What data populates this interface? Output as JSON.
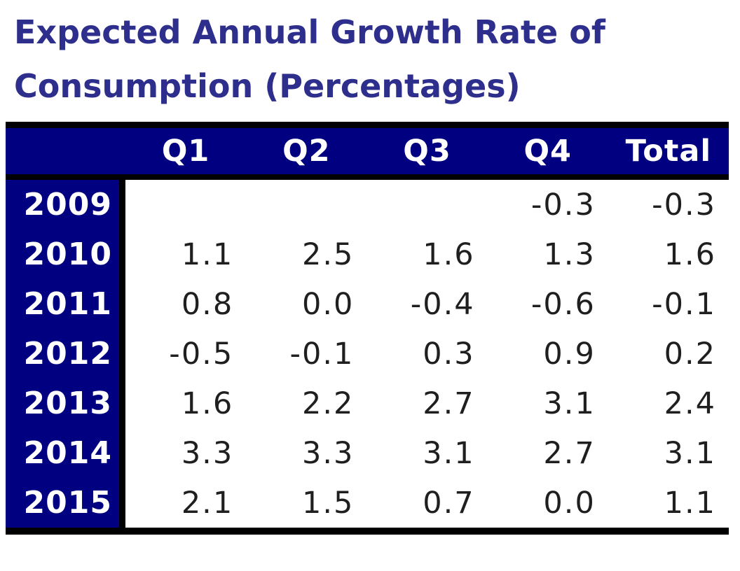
{
  "title": {
    "line1": "Expected Annual Growth Rate of",
    "line2": "Consumption (Percentages)"
  },
  "table": {
    "corner_label": "",
    "columns": [
      "Q1",
      "Q2",
      "Q3",
      "Q4",
      "Total"
    ],
    "rows": [
      {
        "year": "2009",
        "values": [
          "",
          "",
          "",
          "-0.3",
          "-0.3"
        ]
      },
      {
        "year": "2010",
        "values": [
          "1.1",
          "2.5",
          "1.6",
          "1.3",
          "1.6"
        ]
      },
      {
        "year": "2011",
        "values": [
          "0.8",
          "0.0",
          "-0.4",
          "-0.6",
          "-0.1"
        ]
      },
      {
        "year": "2012",
        "values": [
          "-0.5",
          "-0.1",
          "0.3",
          "0.9",
          "0.2"
        ]
      },
      {
        "year": "2013",
        "values": [
          "1.6",
          "2.2",
          "2.7",
          "3.1",
          "2.4"
        ]
      },
      {
        "year": "2014",
        "values": [
          "3.3",
          "3.3",
          "3.1",
          "2.7",
          "3.1"
        ]
      },
      {
        "year": "2015",
        "values": [
          "2.1",
          "1.5",
          "0.7",
          "0.0",
          "1.1"
        ]
      }
    ]
  },
  "colors": {
    "header_background": "#000080",
    "header_text": "#ffffff",
    "title_text": "#2e2e8c",
    "border": "#000000",
    "value_text": "#1f1f1f"
  },
  "chart_data": {
    "type": "table",
    "title": "Expected Annual Growth Rate of Consumption (Percentages)",
    "columns": [
      "Q1",
      "Q2",
      "Q3",
      "Q4",
      "Total"
    ],
    "row_labels": [
      "2009",
      "2010",
      "2011",
      "2012",
      "2013",
      "2014",
      "2015"
    ],
    "rows": [
      [
        null,
        null,
        null,
        -0.3,
        -0.3
      ],
      [
        1.1,
        2.5,
        1.6,
        1.3,
        1.6
      ],
      [
        0.8,
        0.0,
        -0.4,
        -0.6,
        -0.1
      ],
      [
        -0.5,
        -0.1,
        0.3,
        0.9,
        0.2
      ],
      [
        1.6,
        2.2,
        2.7,
        3.1,
        2.4
      ],
      [
        3.3,
        3.3,
        3.1,
        2.7,
        3.1
      ],
      [
        2.1,
        1.5,
        0.7,
        0.0,
        1.1
      ]
    ],
    "unit": "percent"
  }
}
